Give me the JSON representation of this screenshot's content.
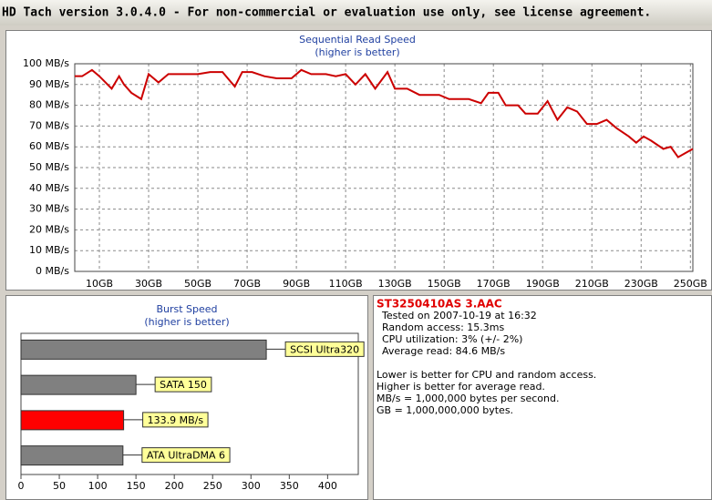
{
  "window": {
    "title": "HD Tach version 3.0.4.0  - For non-commercial or evaluation use only, see license agreement."
  },
  "chart_data": [
    {
      "type": "line",
      "title": "Sequential Read Speed",
      "subtitle": "(higher is better)",
      "x": [
        0,
        3,
        7,
        10,
        15,
        18,
        20,
        23,
        27,
        30,
        34,
        38,
        42,
        46,
        50,
        55,
        60,
        65,
        68,
        72,
        77,
        82,
        88,
        92,
        96,
        102,
        106,
        110,
        114,
        118,
        122,
        127,
        130,
        135,
        140,
        148,
        152,
        160,
        165,
        168,
        172,
        175,
        180,
        183,
        188,
        192,
        196,
        200,
        204,
        208,
        212,
        216,
        220,
        225,
        228,
        231,
        234,
        239,
        242,
        245,
        248,
        251
      ],
      "values": [
        94,
        94,
        97,
        94,
        88,
        94,
        90,
        86,
        83,
        95,
        91,
        95,
        95,
        95,
        95,
        96,
        96,
        89,
        96,
        96,
        94,
        93,
        93,
        97,
        95,
        95,
        94,
        95,
        90,
        95,
        88,
        96,
        88,
        88,
        85,
        85,
        83,
        83,
        81,
        86,
        86,
        80,
        80,
        76,
        76,
        82,
        73,
        79,
        77,
        71,
        71,
        73,
        69,
        65,
        62,
        65,
        63,
        59,
        60,
        55,
        57,
        59
      ],
      "color": "#cc0000",
      "xlim": [
        0,
        251
      ],
      "xticks": [
        {
          "value": 10,
          "label": "10GB"
        },
        {
          "value": 30,
          "label": "30GB"
        },
        {
          "value": 50,
          "label": "50GB"
        },
        {
          "value": 70,
          "label": "70GB"
        },
        {
          "value": 90,
          "label": "90GB"
        },
        {
          "value": 110,
          "label": "110GB"
        },
        {
          "value": 130,
          "label": "130GB"
        },
        {
          "value": 150,
          "label": "150GB"
        },
        {
          "value": 170,
          "label": "170GB"
        },
        {
          "value": 190,
          "label": "190GB"
        },
        {
          "value": 210,
          "label": "210GB"
        },
        {
          "value": 230,
          "label": "230GB"
        },
        {
          "value": 250,
          "label": "250GB"
        }
      ],
      "ylim": [
        0,
        100
      ],
      "yticks": [
        {
          "value": 0,
          "label": "0 MB/s"
        },
        {
          "value": 10,
          "label": "10 MB/s"
        },
        {
          "value": 20,
          "label": "20 MB/s"
        },
        {
          "value": 30,
          "label": "30 MB/s"
        },
        {
          "value": 40,
          "label": "40 MB/s"
        },
        {
          "value": 50,
          "label": "50 MB/s"
        },
        {
          "value": 60,
          "label": "60 MB/s"
        },
        {
          "value": 70,
          "label": "70 MB/s"
        },
        {
          "value": 80,
          "label": "80 MB/s"
        },
        {
          "value": 90,
          "label": "90 MB/s"
        },
        {
          "value": 100,
          "label": "100 MB/s"
        }
      ],
      "grid": true
    },
    {
      "type": "hbar",
      "title": "Burst Speed",
      "subtitle": "(higher is better)",
      "categories": [
        "SCSI Ultra320",
        "SATA 150",
        "133.9 MB/s",
        "ATA UltraDMA 6"
      ],
      "values": [
        320,
        150,
        133.9,
        133
      ],
      "colors": [
        "#808080",
        "#808080",
        "#ff0000",
        "#808080"
      ],
      "xlim": [
        0,
        440
      ],
      "xticks": [
        0,
        50,
        100,
        150,
        200,
        250,
        300,
        350,
        400
      ]
    }
  ],
  "info": {
    "drive": "ST3250410AS 3.AAC",
    "stats": [
      "Tested on 2007-10-19 at 16:32",
      "Random access: 15.3ms",
      "CPU utilization: 3% (+/- 2%)",
      "Average read: 84.6 MB/s"
    ],
    "notes": [
      "Lower is better for CPU and random access.",
      "Higher is better for average read.",
      "MB/s = 1,000,000 bytes per second.",
      "GB = 1,000,000,000 bytes."
    ]
  }
}
